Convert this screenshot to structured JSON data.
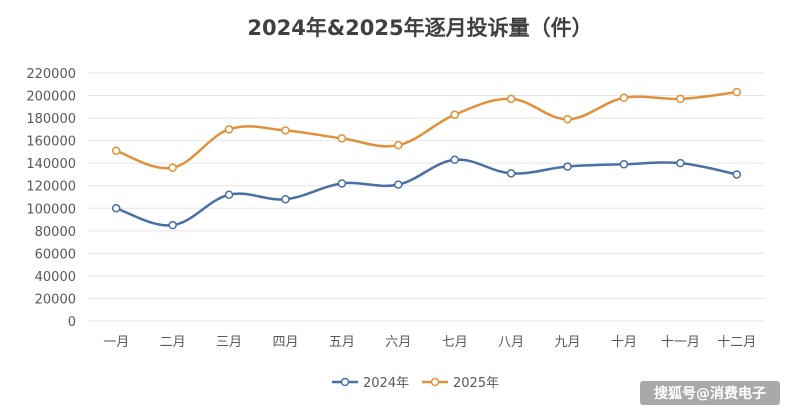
{
  "chart_data": {
    "type": "line",
    "title": "2024年&2025年逐月投诉量（件）",
    "categories": [
      "一月",
      "二月",
      "三月",
      "四月",
      "五月",
      "六月",
      "七月",
      "八月",
      "九月",
      "十月",
      "十一月",
      "十二月"
    ],
    "series": [
      {
        "name": "2024年",
        "color": "#4a6fa5",
        "values": [
          100000,
          85000,
          112000,
          108000,
          122000,
          121000,
          143000,
          131000,
          137000,
          139000,
          140000,
          130000
        ]
      },
      {
        "name": "2025年",
        "color": "#e0913a",
        "values": [
          151000,
          136000,
          170000,
          169000,
          162000,
          156000,
          183000,
          197000,
          179000,
          198000,
          197000,
          203000
        ]
      }
    ],
    "ylim": [
      0,
      220000
    ],
    "yticks": [
      0,
      20000,
      40000,
      60000,
      80000,
      100000,
      120000,
      140000,
      160000,
      180000,
      200000,
      220000
    ],
    "grid": true,
    "legend_position": "bottom",
    "smooth": true
  },
  "watermark": "搜狐号@消费电子"
}
